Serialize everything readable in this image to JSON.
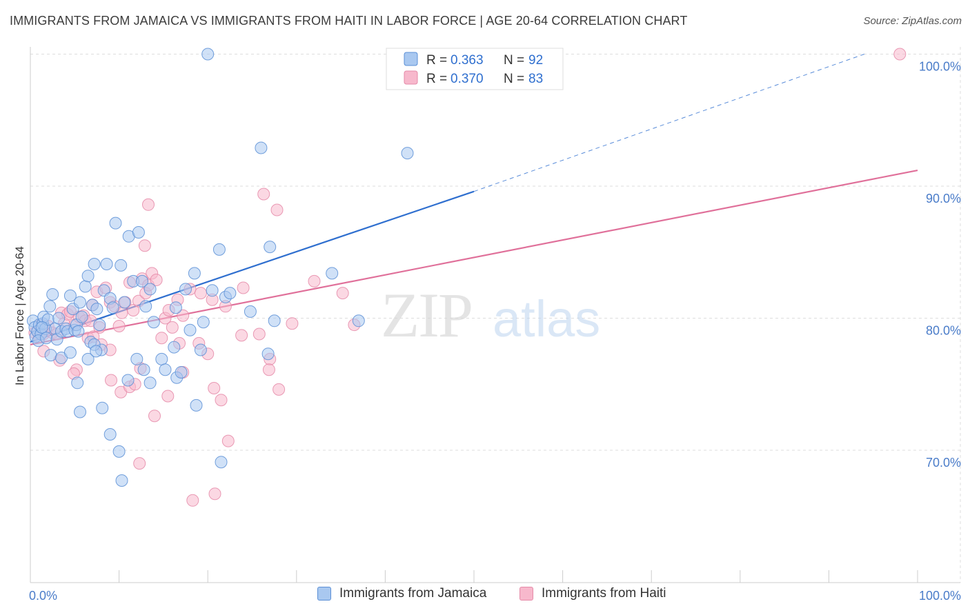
{
  "title": "IMMIGRANTS FROM JAMAICA VS IMMIGRANTS FROM HAITI IN LABOR FORCE | AGE 20-64 CORRELATION CHART",
  "source": "Source: ZipAtlas.com",
  "watermark": {
    "zip": "ZIP",
    "atlas": "atlas"
  },
  "colors": {
    "jamaica_fill": "#a9c8f0",
    "jamaica_stroke": "#5b8fd6",
    "jamaica_line": "#2f6fcf",
    "haiti_fill": "#f7b8cc",
    "haiti_stroke": "#e58aa8",
    "haiti_line": "#e0709a",
    "tick_label": "#4a7cc9",
    "grid": "#dddddd"
  },
  "legend_stats": [
    {
      "r_label": "R =",
      "r_value": "0.363",
      "n_label": "N =",
      "n_value": "92"
    },
    {
      "r_label": "R =",
      "r_value": "0.370",
      "n_label": "N =",
      "n_value": "83"
    }
  ],
  "chart_data": {
    "type": "scatter",
    "title": "IMMIGRANTS FROM JAMAICA VS IMMIGRANTS FROM HAITI IN LABOR FORCE | AGE 20-64 CORRELATION CHART",
    "xlabel": "",
    "ylabel": "In Labor Force | Age 20-64",
    "xlim": [
      0,
      100
    ],
    "ylim": [
      60,
      101
    ],
    "x_tick_labels": [
      "0.0%",
      "100.0%"
    ],
    "y_ticks": [
      70,
      80,
      90,
      100
    ],
    "y_tick_labels": [
      "70.0%",
      "80.0%",
      "90.0%",
      "100.0%"
    ],
    "grid": true,
    "legend_position": "bottom",
    "series": [
      {
        "name": "Immigrants from Jamaica",
        "r": 0.363,
        "n": 92,
        "trend": {
          "x0": 0,
          "y0": 78.2,
          "x1": 50,
          "y1": 89.6,
          "dashed_to_x": 94,
          "dashed_to_y": 100
        },
        "points": [
          [
            0.3,
            79.8
          ],
          [
            0.5,
            79.3
          ],
          [
            0.6,
            78.6
          ],
          [
            0.8,
            79.0
          ],
          [
            1.0,
            79.5
          ],
          [
            1.2,
            78.8
          ],
          [
            1.4,
            79.6
          ],
          [
            1.5,
            80.1
          ],
          [
            1.7,
            79.2
          ],
          [
            2.0,
            79.9
          ],
          [
            1.3,
            79.3
          ],
          [
            0.9,
            78.3
          ],
          [
            1.8,
            78.5
          ],
          [
            2.2,
            80.9
          ],
          [
            2.5,
            81.8
          ],
          [
            2.8,
            79.2
          ],
          [
            3.0,
            78.4
          ],
          [
            3.2,
            80.0
          ],
          [
            3.5,
            79.0
          ],
          [
            4.0,
            79.2
          ],
          [
            4.2,
            79.0
          ],
          [
            4.5,
            81.7
          ],
          [
            4.8,
            80.7
          ],
          [
            5.0,
            79.1
          ],
          [
            5.2,
            79.5
          ],
          [
            5.4,
            79.0
          ],
          [
            5.6,
            81.2
          ],
          [
            5.8,
            80.1
          ],
          [
            6.2,
            82.4
          ],
          [
            6.5,
            83.2
          ],
          [
            6.8,
            78.2
          ],
          [
            7.0,
            81.0
          ],
          [
            7.2,
            84.1
          ],
          [
            7.5,
            80.7
          ],
          [
            7.8,
            79.5
          ],
          [
            8.0,
            77.6
          ],
          [
            8.3,
            82.1
          ],
          [
            8.6,
            84.1
          ],
          [
            9.0,
            81.5
          ],
          [
            9.3,
            80.8
          ],
          [
            9.6,
            87.2
          ],
          [
            10.2,
            84.0
          ],
          [
            10.6,
            81.2
          ],
          [
            11.1,
            86.2
          ],
          [
            11.6,
            82.8
          ],
          [
            12.2,
            86.5
          ],
          [
            12.6,
            82.8
          ],
          [
            13.0,
            80.9
          ],
          [
            13.5,
            82.2
          ],
          [
            13.9,
            79.7
          ],
          [
            2.3,
            77.2
          ],
          [
            3.5,
            77.0
          ],
          [
            4.5,
            77.4
          ],
          [
            5.3,
            75.1
          ],
          [
            5.6,
            72.9
          ],
          [
            6.5,
            76.9
          ],
          [
            7.2,
            78.0
          ],
          [
            7.4,
            77.5
          ],
          [
            8.1,
            73.2
          ],
          [
            9.0,
            71.2
          ],
          [
            10.0,
            69.9
          ],
          [
            10.3,
            67.7
          ],
          [
            12.0,
            76.9
          ],
          [
            12.8,
            76.1
          ],
          [
            13.5,
            75.1
          ],
          [
            14.8,
            76.9
          ],
          [
            15.2,
            76.1
          ],
          [
            16.2,
            77.8
          ],
          [
            16.5,
            75.5
          ],
          [
            17.0,
            75.9
          ],
          [
            17.5,
            82.2
          ],
          [
            18.0,
            79.1
          ],
          [
            18.5,
            83.4
          ],
          [
            18.7,
            73.4
          ],
          [
            19.2,
            77.6
          ],
          [
            19.5,
            79.7
          ],
          [
            20.5,
            82.1
          ],
          [
            21.3,
            85.2
          ],
          [
            21.5,
            69.1
          ],
          [
            22.0,
            81.6
          ],
          [
            22.5,
            81.9
          ],
          [
            24.8,
            80.5
          ],
          [
            26.0,
            92.9
          ],
          [
            27.0,
            85.4
          ],
          [
            27.5,
            79.8
          ],
          [
            34.0,
            83.4
          ],
          [
            37.0,
            79.8
          ],
          [
            42.5,
            92.5
          ],
          [
            20.0,
            100.0
          ],
          [
            26.8,
            77.3
          ],
          [
            16.4,
            80.8
          ],
          [
            11.0,
            75.3
          ]
        ]
      },
      {
        "name": "Immigrants from Haiti",
        "r": 0.37,
        "n": 83,
        "trend": {
          "x0": 0,
          "y0": 78.0,
          "x1": 100,
          "y1": 91.2
        },
        "points": [
          [
            0.5,
            78.9
          ],
          [
            1.2,
            79.5
          ],
          [
            1.0,
            78.6
          ],
          [
            1.5,
            78.8
          ],
          [
            2.0,
            79.4
          ],
          [
            2.5,
            78.9
          ],
          [
            3.0,
            78.8
          ],
          [
            3.5,
            80.4
          ],
          [
            3.8,
            79.6
          ],
          [
            4.2,
            80.3
          ],
          [
            4.5,
            80.5
          ],
          [
            5.0,
            79.5
          ],
          [
            5.5,
            80.1
          ],
          [
            6.0,
            80.2
          ],
          [
            6.2,
            79.8
          ],
          [
            6.8,
            79.8
          ],
          [
            7.0,
            81.0
          ],
          [
            7.5,
            82.0
          ],
          [
            7.8,
            79.3
          ],
          [
            8.0,
            78.0
          ],
          [
            8.5,
            82.3
          ],
          [
            9.0,
            81.2
          ],
          [
            9.5,
            80.9
          ],
          [
            10.0,
            79.4
          ],
          [
            10.3,
            80.4
          ],
          [
            10.7,
            81.2
          ],
          [
            11.2,
            82.7
          ],
          [
            11.6,
            80.6
          ],
          [
            12.2,
            81.3
          ],
          [
            12.6,
            83.0
          ],
          [
            13.0,
            81.9
          ],
          [
            13.3,
            82.5
          ],
          [
            13.7,
            83.4
          ],
          [
            14.2,
            82.9
          ],
          [
            14.8,
            78.5
          ],
          [
            15.2,
            80.0
          ],
          [
            15.6,
            80.6
          ],
          [
            16.0,
            79.3
          ],
          [
            16.6,
            81.4
          ],
          [
            17.2,
            80.2
          ],
          [
            1.5,
            77.5
          ],
          [
            3.3,
            76.8
          ],
          [
            5.2,
            76.1
          ],
          [
            6.5,
            78.5
          ],
          [
            7.1,
            78.6
          ],
          [
            9.0,
            77.6
          ],
          [
            10.2,
            74.4
          ],
          [
            11.2,
            74.8
          ],
          [
            11.8,
            75.0
          ],
          [
            12.3,
            69.0
          ],
          [
            14.0,
            72.6
          ],
          [
            15.5,
            74.1
          ],
          [
            16.8,
            78.1
          ],
          [
            17.2,
            75.9
          ],
          [
            19.0,
            78.1
          ],
          [
            20.0,
            77.3
          ],
          [
            20.7,
            74.7
          ],
          [
            21.5,
            73.8
          ],
          [
            22.3,
            70.7
          ],
          [
            23.8,
            78.7
          ],
          [
            18.0,
            82.2
          ],
          [
            19.2,
            81.9
          ],
          [
            20.5,
            81.4
          ],
          [
            22.0,
            80.9
          ],
          [
            13.3,
            88.6
          ],
          [
            26.3,
            89.4
          ],
          [
            25.8,
            78.8
          ],
          [
            24.0,
            82.3
          ],
          [
            27.0,
            76.9
          ],
          [
            28.0,
            74.6
          ],
          [
            18.3,
            66.2
          ],
          [
            20.8,
            66.7
          ],
          [
            27.8,
            88.2
          ],
          [
            32.0,
            82.8
          ],
          [
            35.2,
            81.9
          ],
          [
            36.5,
            79.5
          ],
          [
            29.5,
            79.6
          ],
          [
            26.9,
            76.1
          ],
          [
            98.0,
            100.0
          ],
          [
            12.9,
            85.5
          ],
          [
            12.4,
            76.2
          ],
          [
            9.1,
            75.3
          ],
          [
            4.9,
            75.8
          ]
        ]
      }
    ]
  }
}
